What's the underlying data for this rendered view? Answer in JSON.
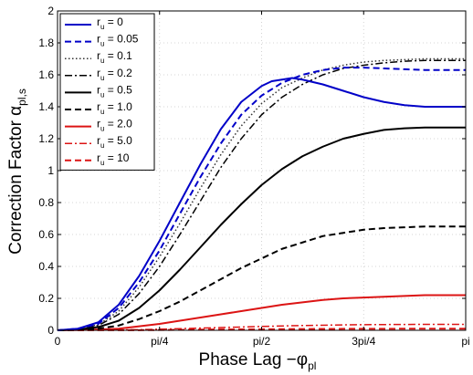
{
  "chart_data": {
    "type": "line",
    "xlabel": {
      "main": "Phase Lag −φ",
      "sub": "pl"
    },
    "ylabel": {
      "main": "Correction Factor α",
      "sub": "pl,s"
    },
    "xlim": [
      0,
      3.14159
    ],
    "ylim": [
      0,
      2
    ],
    "xticks": [
      {
        "value": 0,
        "label": "0"
      },
      {
        "value": 0.785398,
        "label": "pi/4"
      },
      {
        "value": 1.570796,
        "label": "pi/2"
      },
      {
        "value": 2.356194,
        "label": "3pi/4"
      },
      {
        "value": 3.141593,
        "label": "pi"
      }
    ],
    "yticks": [
      0,
      0.2,
      0.4,
      0.6,
      0.8,
      1,
      1.2,
      1.4,
      1.6,
      1.8,
      2
    ],
    "grid": true,
    "legend_position": "top-left",
    "series": [
      {
        "name_prefix": "r",
        "name_sub": "u",
        "name_suffix": " = 0",
        "color": "#0000c8",
        "dash": "solid",
        "width": 2,
        "points": [
          [
            0,
            0
          ],
          [
            0.157,
            0.01
          ],
          [
            0.314,
            0.05
          ],
          [
            0.471,
            0.16
          ],
          [
            0.628,
            0.34
          ],
          [
            0.785,
            0.56
          ],
          [
            0.942,
            0.8
          ],
          [
            1.1,
            1.04
          ],
          [
            1.257,
            1.26
          ],
          [
            1.414,
            1.43
          ],
          [
            1.571,
            1.53
          ],
          [
            1.649,
            1.56
          ],
          [
            1.728,
            1.57
          ],
          [
            1.806,
            1.58
          ],
          [
            1.885,
            1.57
          ],
          [
            2.042,
            1.54
          ],
          [
            2.199,
            1.5
          ],
          [
            2.356,
            1.46
          ],
          [
            2.513,
            1.43
          ],
          [
            2.67,
            1.41
          ],
          [
            2.827,
            1.4
          ],
          [
            2.985,
            1.4
          ],
          [
            3.142,
            1.4
          ]
        ]
      },
      {
        "name_prefix": "r",
        "name_sub": "u",
        "name_suffix": " = 0.05",
        "color": "#0000c8",
        "dash": "dashed",
        "width": 2,
        "points": [
          [
            0,
            0
          ],
          [
            0.157,
            0.01
          ],
          [
            0.314,
            0.04
          ],
          [
            0.471,
            0.14
          ],
          [
            0.628,
            0.3
          ],
          [
            0.785,
            0.5
          ],
          [
            0.942,
            0.73
          ],
          [
            1.1,
            0.96
          ],
          [
            1.257,
            1.17
          ],
          [
            1.414,
            1.35
          ],
          [
            1.571,
            1.47
          ],
          [
            1.728,
            1.55
          ],
          [
            1.885,
            1.6
          ],
          [
            2.042,
            1.63
          ],
          [
            2.199,
            1.645
          ],
          [
            2.356,
            1.645
          ],
          [
            2.513,
            1.64
          ],
          [
            2.67,
            1.635
          ],
          [
            2.827,
            1.63
          ],
          [
            2.985,
            1.63
          ],
          [
            3.142,
            1.63
          ]
        ]
      },
      {
        "name_prefix": "r",
        "name_sub": "u",
        "name_suffix": " = 0.1",
        "color": "#333333",
        "dash": "dotted",
        "width": 1.5,
        "points": [
          [
            0,
            0
          ],
          [
            0.157,
            0.01
          ],
          [
            0.314,
            0.035
          ],
          [
            0.471,
            0.12
          ],
          [
            0.628,
            0.27
          ],
          [
            0.785,
            0.46
          ],
          [
            0.942,
            0.67
          ],
          [
            1.1,
            0.89
          ],
          [
            1.257,
            1.1
          ],
          [
            1.414,
            1.28
          ],
          [
            1.571,
            1.42
          ],
          [
            1.728,
            1.52
          ],
          [
            1.885,
            1.58
          ],
          [
            2.042,
            1.63
          ],
          [
            2.199,
            1.66
          ],
          [
            2.356,
            1.68
          ],
          [
            2.513,
            1.69
          ],
          [
            2.67,
            1.695
          ],
          [
            2.827,
            1.7
          ],
          [
            2.985,
            1.7
          ],
          [
            3.142,
            1.7
          ]
        ]
      },
      {
        "name_prefix": "r",
        "name_sub": "u",
        "name_suffix": " = 0.2",
        "color": "#000000",
        "dash": "dashdot",
        "width": 1.5,
        "points": [
          [
            0,
            0
          ],
          [
            0.157,
            0.008
          ],
          [
            0.314,
            0.03
          ],
          [
            0.471,
            0.1
          ],
          [
            0.628,
            0.23
          ],
          [
            0.785,
            0.4
          ],
          [
            0.942,
            0.6
          ],
          [
            1.1,
            0.81
          ],
          [
            1.257,
            1.02
          ],
          [
            1.414,
            1.2
          ],
          [
            1.571,
            1.35
          ],
          [
            1.728,
            1.46
          ],
          [
            1.885,
            1.54
          ],
          [
            2.042,
            1.6
          ],
          [
            2.199,
            1.64
          ],
          [
            2.356,
            1.66
          ],
          [
            2.513,
            1.675
          ],
          [
            2.67,
            1.685
          ],
          [
            2.827,
            1.69
          ],
          [
            2.985,
            1.69
          ],
          [
            3.142,
            1.69
          ]
        ]
      },
      {
        "name_prefix": "r",
        "name_sub": "u",
        "name_suffix": " = 0.5",
        "color": "#000000",
        "dash": "solid",
        "width": 2,
        "points": [
          [
            0,
            0
          ],
          [
            0.157,
            0.005
          ],
          [
            0.314,
            0.02
          ],
          [
            0.471,
            0.06
          ],
          [
            0.628,
            0.14
          ],
          [
            0.785,
            0.25
          ],
          [
            0.942,
            0.38
          ],
          [
            1.1,
            0.52
          ],
          [
            1.257,
            0.66
          ],
          [
            1.414,
            0.79
          ],
          [
            1.571,
            0.91
          ],
          [
            1.728,
            1.01
          ],
          [
            1.885,
            1.09
          ],
          [
            2.042,
            1.15
          ],
          [
            2.199,
            1.2
          ],
          [
            2.356,
            1.23
          ],
          [
            2.513,
            1.255
          ],
          [
            2.67,
            1.265
          ],
          [
            2.827,
            1.27
          ],
          [
            2.985,
            1.27
          ],
          [
            3.142,
            1.27
          ]
        ]
      },
      {
        "name_prefix": "r",
        "name_sub": "u",
        "name_suffix": " = 1.0",
        "color": "#000000",
        "dash": "dashed",
        "width": 2,
        "points": [
          [
            0,
            0
          ],
          [
            0.157,
            0.003
          ],
          [
            0.314,
            0.01
          ],
          [
            0.471,
            0.03
          ],
          [
            0.628,
            0.07
          ],
          [
            0.785,
            0.12
          ],
          [
            0.942,
            0.18
          ],
          [
            1.1,
            0.25
          ],
          [
            1.257,
            0.32
          ],
          [
            1.414,
            0.39
          ],
          [
            1.571,
            0.45
          ],
          [
            1.728,
            0.51
          ],
          [
            1.885,
            0.55
          ],
          [
            2.042,
            0.59
          ],
          [
            2.199,
            0.61
          ],
          [
            2.356,
            0.63
          ],
          [
            2.513,
            0.64
          ],
          [
            2.67,
            0.645
          ],
          [
            2.827,
            0.65
          ],
          [
            2.985,
            0.65
          ],
          [
            3.142,
            0.65
          ]
        ]
      },
      {
        "name_prefix": "r",
        "name_sub": "u",
        "name_suffix": " = 2.0",
        "color": "#dc1414",
        "dash": "solid",
        "width": 2,
        "points": [
          [
            0,
            0
          ],
          [
            0.157,
            0.002
          ],
          [
            0.314,
            0.005
          ],
          [
            0.471,
            0.01
          ],
          [
            0.628,
            0.025
          ],
          [
            0.785,
            0.04
          ],
          [
            0.942,
            0.06
          ],
          [
            1.1,
            0.08
          ],
          [
            1.257,
            0.1
          ],
          [
            1.414,
            0.12
          ],
          [
            1.571,
            0.14
          ],
          [
            1.728,
            0.16
          ],
          [
            1.885,
            0.175
          ],
          [
            2.042,
            0.19
          ],
          [
            2.199,
            0.2
          ],
          [
            2.356,
            0.205
          ],
          [
            2.513,
            0.21
          ],
          [
            2.67,
            0.215
          ],
          [
            2.827,
            0.22
          ],
          [
            2.985,
            0.22
          ],
          [
            3.142,
            0.22
          ]
        ]
      },
      {
        "name_prefix": "r",
        "name_sub": "u",
        "name_suffix": " = 5.0",
        "color": "#dc1414",
        "dash": "dashdot",
        "width": 1.5,
        "points": [
          [
            0,
            0
          ],
          [
            0.314,
            0.001
          ],
          [
            0.628,
            0.004
          ],
          [
            0.942,
            0.01
          ],
          [
            1.257,
            0.017
          ],
          [
            1.571,
            0.024
          ],
          [
            1.885,
            0.03
          ],
          [
            2.199,
            0.034
          ],
          [
            2.513,
            0.036
          ],
          [
            2.827,
            0.037
          ],
          [
            3.142,
            0.037
          ]
        ]
      },
      {
        "name_prefix": "r",
        "name_sub": "u",
        "name_suffix": " = 10",
        "color": "#dc1414",
        "dash": "dashed",
        "width": 2,
        "points": [
          [
            0,
            0
          ],
          [
            0.314,
            0.0005
          ],
          [
            0.628,
            0.001
          ],
          [
            0.942,
            0.003
          ],
          [
            1.257,
            0.005
          ],
          [
            1.571,
            0.006
          ],
          [
            1.885,
            0.008
          ],
          [
            2.199,
            0.009
          ],
          [
            2.513,
            0.0095
          ],
          [
            2.827,
            0.01
          ],
          [
            3.142,
            0.01
          ]
        ]
      }
    ]
  }
}
